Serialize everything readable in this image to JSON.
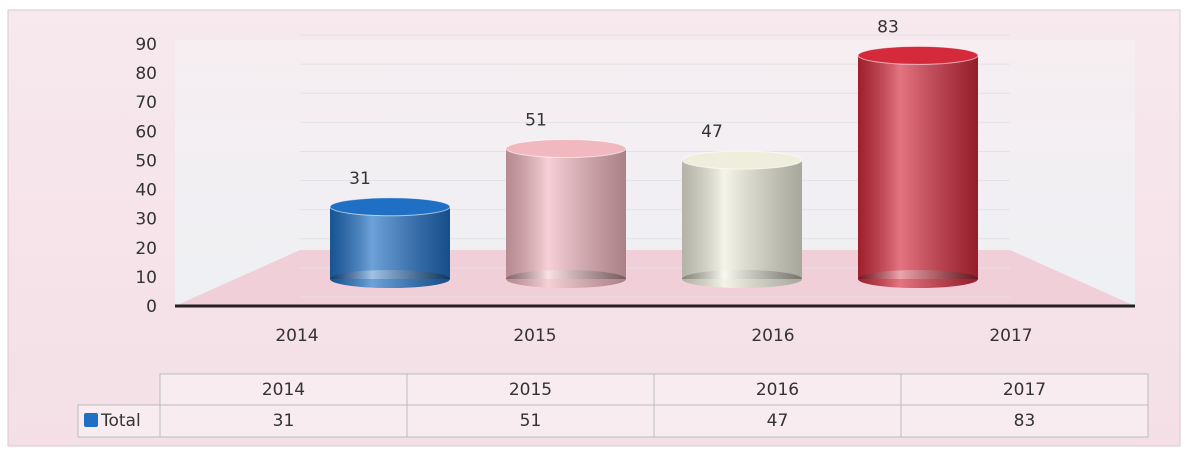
{
  "chart_data": {
    "type": "bar",
    "categories": [
      "2014",
      "2015",
      "2016",
      "2017"
    ],
    "series": [
      {
        "name": "Total",
        "color": "#1f6fc4",
        "values": [
          31,
          51,
          47,
          83
        ]
      }
    ],
    "colors": [
      "#1f6fc4",
      "#f2b8c0",
      "#efeedd",
      "#d42a3c"
    ],
    "ylim": [
      0,
      90
    ],
    "yticks": [
      0,
      10,
      20,
      30,
      40,
      50,
      60,
      70,
      80,
      90
    ],
    "grid": true
  }
}
